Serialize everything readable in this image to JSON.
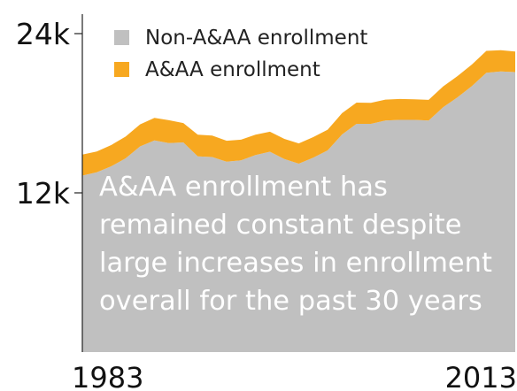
{
  "chart_data": {
    "type": "area",
    "x": [
      1983,
      1984,
      1985,
      1986,
      1987,
      1988,
      1989,
      1990,
      1991,
      1992,
      1993,
      1994,
      1995,
      1996,
      1997,
      1998,
      1999,
      2000,
      2001,
      2002,
      2003,
      2004,
      2005,
      2006,
      2007,
      2008,
      2009,
      2010,
      2011,
      2012,
      2013
    ],
    "series": [
      {
        "name": "Non-A&AA enrollment",
        "color": "#c0c0c0",
        "values": [
          13300,
          13550,
          14000,
          14600,
          15500,
          15950,
          15750,
          15800,
          14750,
          14700,
          14350,
          14450,
          14850,
          15100,
          14550,
          14200,
          14650,
          15200,
          16400,
          17200,
          17200,
          17450,
          17500,
          17500,
          17450,
          18450,
          19200,
          20050,
          21050,
          21150,
          21100
        ]
      },
      {
        "name": "A&AA enrollment",
        "color": "#f7a820",
        "values": [
          1580,
          1560,
          1600,
          1640,
          1660,
          1700,
          1720,
          1460,
          1640,
          1620,
          1580,
          1560,
          1540,
          1510,
          1520,
          1530,
          1550,
          1560,
          1610,
          1600,
          1590,
          1580,
          1570,
          1550,
          1560,
          1570,
          1600,
          1620,
          1650,
          1600,
          1550
        ]
      }
    ],
    "yticks": [
      {
        "value": 12000,
        "label": "12k"
      },
      {
        "value": 24000,
        "label": "24k"
      }
    ],
    "xticks": [
      {
        "value": 1983,
        "label": "1983"
      },
      {
        "value": 2013,
        "label": "2013"
      }
    ],
    "ylim": [
      0,
      26000
    ],
    "xlim": [
      1983,
      2013
    ],
    "legend": "top-left",
    "grid": false,
    "stacked": true,
    "annotation": [
      "A&AA enrollment has",
      "remained constant despite",
      "large increases in enrollment",
      "overall for the past 30 years"
    ]
  }
}
